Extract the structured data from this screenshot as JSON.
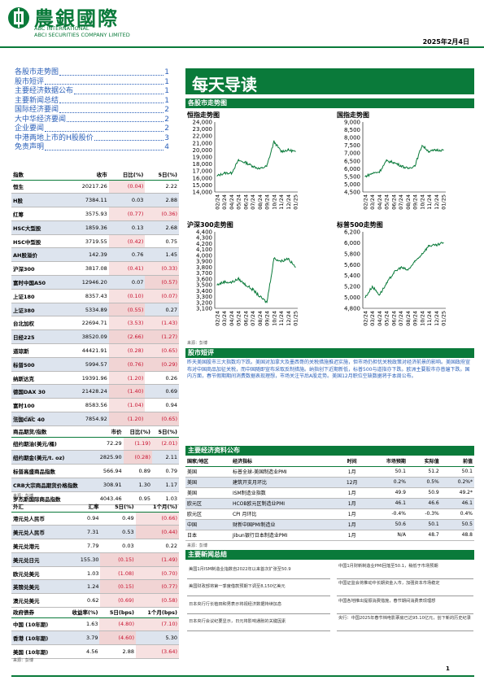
{
  "header": {
    "logo_cn": "農銀國際",
    "logo_en1": "ABC INTERNATIONAL",
    "logo_en2": "ABCI SECURITIES COMPANY LIMITED",
    "date": "2025年2月4日"
  },
  "toc": [
    {
      "label": "各股市走势图",
      "page": "1"
    },
    {
      "label": "股市短评",
      "page": "1"
    },
    {
      "label": "主要经济数据公布",
      "page": "1"
    },
    {
      "label": "主要新闻总结",
      "page": "1"
    },
    {
      "label": "国际经济要闻",
      "page": "2"
    },
    {
      "label": "大中华经济要闻",
      "page": "2"
    },
    {
      "label": "企业要闻",
      "page": "2"
    },
    {
      "label": "中港两地上市的H股股价",
      "page": "3"
    },
    {
      "label": "免责声明",
      "page": "4"
    }
  ],
  "title": "每天导读",
  "sections": {
    "charts": "各股市走势图",
    "commentary": "股市短评",
    "eco": "主要经济资料公布",
    "news": "主要新闻总结"
  },
  "charts": {
    "source": "来源：彭博",
    "x_labels": [
      "02/24",
      "03/24",
      "04/24",
      "05/24",
      "06/24",
      "07/24",
      "08/24",
      "09/24",
      "10/24",
      "11/24",
      "12/24",
      "01/25"
    ]
  },
  "chart_data": [
    {
      "type": "line",
      "title": "恒指走势图",
      "ylim": [
        14000,
        24000
      ],
      "yticks": [
        "14,000",
        "15,000",
        "16,000",
        "17,000",
        "18,000",
        "19,000",
        "20,000",
        "21,000",
        "22,000",
        "23,000",
        "24,000"
      ],
      "x": [
        "02/24",
        "03/24",
        "04/24",
        "05/24",
        "06/24",
        "07/24",
        "08/24",
        "09/24",
        "10/24",
        "11/24",
        "12/24",
        "01/25"
      ],
      "values": [
        16300,
        16700,
        16700,
        18500,
        18200,
        17700,
        17300,
        17700,
        21200,
        19800,
        20000,
        19800
      ]
    },
    {
      "type": "line",
      "title": "国指走势图",
      "ylim": [
        4500,
        9000
      ],
      "yticks": [
        "4,500",
        "5,000",
        "5,500",
        "6,000",
        "6,500",
        "7,000",
        "7,500",
        "8,000",
        "8,500",
        "9,000"
      ],
      "x": [
        "02/24",
        "03/24",
        "04/24",
        "05/24",
        "06/24",
        "07/24",
        "08/24",
        "09/24",
        "10/24",
        "11/24",
        "12/24",
        "01/25"
      ],
      "values": [
        5500,
        5700,
        5800,
        6500,
        6400,
        6200,
        6000,
        6200,
        7500,
        7100,
        7200,
        7200
      ]
    },
    {
      "type": "line",
      "title": "沪深300走势图",
      "ylim": [
        3100,
        4400
      ],
      "yticks": [
        "3,100",
        "3,200",
        "3,300",
        "3,400",
        "3,500",
        "3,600",
        "3,700",
        "3,800",
        "3,900",
        "4,000",
        "4,100",
        "4,200",
        "4,300",
        "4,400"
      ],
      "x": [
        "02/24",
        "03/24",
        "04/24",
        "05/24",
        "06/24",
        "07/24",
        "08/24",
        "09/24",
        "10/24",
        "11/24",
        "12/24",
        "01/25"
      ],
      "values": [
        3500,
        3550,
        3540,
        3600,
        3500,
        3420,
        3300,
        3200,
        3950,
        3900,
        3950,
        3800
      ]
    },
    {
      "type": "line",
      "title": "标普500走势图",
      "ylim": [
        4800,
        6200
      ],
      "yticks": [
        "4,800",
        "5,000",
        "5,200",
        "5,400",
        "5,600",
        "5,800",
        "6,000",
        "6,200"
      ],
      "x": [
        "02/24",
        "03/24",
        "04/24",
        "05/24",
        "06/24",
        "07/24",
        "08/24",
        "09/24",
        "10/24",
        "11/24",
        "12/24",
        "01/25"
      ],
      "values": [
        5000,
        5200,
        5050,
        5250,
        5450,
        5550,
        5500,
        5650,
        5800,
        5950,
        5950,
        6000
      ]
    }
  ],
  "commentary": "昨天美国股市三大指数均下跌。美国对加拿大及墨西哥的关税措施推迟实施，但市场仍担忧关税政策对经济前景的影响。美国政府宣布对中国商品加征关税，而中国随即宣布采取反制措施。纳指创下近期新低，标普500与道指亦下跌。欧洲主要股市亦普遍下跌。国内方面，春节假期期间消费数据表现理想，市场关注节后A股走势。美国12月职位空缺数据将于本周公布。",
  "market_table": {
    "headers": [
      "指数",
      "收市",
      "日比(%)",
      "5日(%)"
    ],
    "rows": [
      [
        "恒生",
        "20217.26",
        "(0.04)",
        "2.22"
      ],
      [
        "H股",
        "7384.11",
        "0.03",
        "2.88"
      ],
      [
        "红筹",
        "3575.93",
        "(0.77)",
        "(0.36)"
      ],
      [
        "HSC大型股",
        "1859.36",
        "0.13",
        "2.68"
      ],
      [
        "HSC中型股",
        "3719.55",
        "(0.42)",
        "0.75"
      ],
      [
        "AH股溢价",
        "142.39",
        "0.76",
        "1.45"
      ],
      [
        "沪深300",
        "3817.08",
        "(0.41)",
        "(0.33)"
      ],
      [
        "富时中国A50",
        "12946.20",
        "0.07",
        "(0.57)"
      ],
      [
        "上证180",
        "8357.43",
        "(0.10)",
        "(0.07)"
      ],
      [
        "上证380",
        "5334.89",
        "(0.55)",
        "0.27"
      ],
      [
        "台北加权",
        "22694.71",
        "(3.53)",
        "(1.43)"
      ],
      [
        "日经225",
        "38520.09",
        "(2.66)",
        "(1.27)"
      ],
      [
        "道琼斯",
        "44421.91",
        "(0.28)",
        "(0.65)"
      ],
      [
        "标普500",
        "5994.57",
        "(0.76)",
        "(0.29)"
      ],
      [
        "纳斯达克",
        "19391.96",
        "(1.20)",
        "0.26"
      ],
      [
        "德国DAX 30",
        "21428.24",
        "(1.40)",
        "0.69"
      ],
      [
        "富时100",
        "8583.56",
        "(1.04)",
        "0.94"
      ],
      [
        "法国CAC 40",
        "7854.92",
        "(1.20)",
        "(0.65)"
      ]
    ],
    "source": "来源：彭博"
  },
  "commodity_table": {
    "headers": [
      "商品期货/指数",
      "市价",
      "日比(%)",
      "5日(%)"
    ],
    "rows": [
      [
        "纽约期油(美元/桶)",
        "72.29",
        "(1.19)",
        "(2.01)"
      ],
      [
        "纽约期金(美元/t. oz)",
        "2825.90",
        "(0.28)",
        "2.11"
      ],
      [
        "标普高盛商品指数",
        "566.94",
        "0.89",
        "0.79"
      ],
      [
        "CRB大宗商品期货价格指数",
        "308.91",
        "1.30",
        "1.17"
      ],
      [
        "罗杰斯国际商品指数",
        "4043.46",
        "0.95",
        "1.03"
      ]
    ],
    "source": "来源：彭博"
  },
  "fx_table": {
    "headers": [
      "外汇",
      "汇率",
      "5日(%)",
      "1个月(%)"
    ],
    "rows": [
      [
        "港元兑人民币",
        "0.94",
        "0.49",
        "(0.66)"
      ],
      [
        "美元兑人民币",
        "7.31",
        "0.53",
        "(0.44)"
      ],
      [
        "美元兑港元",
        "7.79",
        "0.03",
        "0.22"
      ],
      [
        "美元兑日元",
        "155.30",
        "(0.15)",
        "(1.49)"
      ],
      [
        "欧元兑美元",
        "1.03",
        "(1.08)",
        "(0.70)"
      ],
      [
        "英镑兑美元",
        "1.24",
        "(0.15)",
        "(0.77)"
      ],
      [
        "澳元兑美元",
        "0.62",
        "(0.69)",
        "(0.58)"
      ]
    ],
    "source": "来源：彭博"
  },
  "bond_table": {
    "headers": [
      "政府债券",
      "收益率(%)",
      "5日(bps)",
      "1个月(bps)"
    ],
    "rows": [
      [
        "中国 (10年期)",
        "1.63",
        "(4.80)",
        "(7.10)"
      ],
      [
        "香港 (10年期)",
        "3.79",
        "(4.60)",
        "5.30"
      ],
      [
        "美国 (10年期)",
        "4.56",
        "2.88",
        "(3.64)"
      ]
    ],
    "source": "来源：彭博"
  },
  "eco_table": {
    "headers": [
      "国家/地区",
      "经济指标",
      "时间",
      "市场预期",
      "实际值",
      "前值"
    ],
    "rows": [
      [
        "美国",
        "标普全球-美国制造业PMI",
        "1月",
        "50.1",
        "51.2",
        "50.1"
      ],
      [
        "美国",
        "建筑开支月环比",
        "12月",
        "0.2%",
        "0.5%",
        "0.2%*"
      ],
      [
        "美国",
        "ISM制造业指数",
        "1月",
        "49.9",
        "50.9",
        "49.2*"
      ],
      [
        "欧元区",
        "HCOB欧元区制造业PMI",
        "1月",
        "46.1",
        "46.6",
        "46.1"
      ],
      [
        "欧元区",
        "CPI 月环比",
        "1月",
        "-0.4%",
        "-0.3%",
        "0.4%"
      ],
      [
        "中国",
        "财新中国PMI制造业",
        "1月",
        "50.6",
        "50.1",
        "50.5"
      ],
      [
        "日本",
        "Jibun银行日本制造业PMI",
        "1月",
        "N/A",
        "48.7",
        "48.8"
      ]
    ],
    "source": "来源：彭博"
  },
  "news": {
    "left": [
      "美国1月ISM制造业指数自2022年以来首次扩张至50.9",
      "美国财政部将第一季度借款预期下调至8,150亿美元",
      "日本央行行长植田和男表示将视经济数据持续加息",
      "日本央行会议纪要显示，日元将影响通胀的关键因素"
    ],
    "right": [
      "中国1月财新制造业PMI回落至50.1，稍低于市场预期",
      "中国证监会将推动中长期资金入市，加强资本市场稳定",
      "中国各地推出提振消费措施，春节期间消费表现理想",
      "央行：中国2025年春节档电影票房已达95.10亿元，创下新的历史纪录"
    ]
  },
  "page_number": "1"
}
